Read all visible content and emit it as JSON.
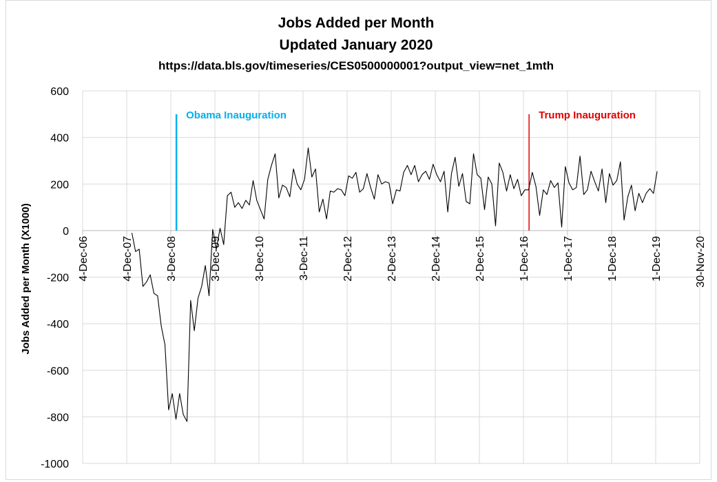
{
  "chart_data": {
    "type": "line",
    "title": "Jobs Added per Month",
    "subtitle": "Updated January 2020",
    "source_line": "https://data.bls.gov/timeseries/CES0500000001?output_view=net_1mth",
    "xlabel": "",
    "ylabel": "Jobs Added per Month (X1000)",
    "ylim": [
      -1000,
      600
    ],
    "y_ticks": [
      600,
      400,
      200,
      0,
      -200,
      -400,
      -600,
      -800,
      -1000
    ],
    "x_ticks": [
      "4-Dec-06",
      "4-Dec-07",
      "3-Dec-08",
      "3-Dec-09",
      "3-Dec-10",
      "3-Dec-11",
      "2-Dec-12",
      "2-Dec-13",
      "2-Dec-14",
      "2-Dec-15",
      "1-Dec-16",
      "1-Dec-17",
      "1-Dec-18",
      "1-Dec-19",
      "30-Nov-20"
    ],
    "grid": "vertical",
    "line_color": "#000000",
    "series": [
      {
        "start": "2008-01",
        "frequency": "monthly",
        "values": [
          -10,
          -90,
          -80,
          -240,
          -220,
          -190,
          -270,
          -280,
          -410,
          -490,
          -770,
          -700,
          -810,
          -700,
          -790,
          -820,
          -300,
          -430,
          -290,
          -240,
          -150,
          -280,
          5,
          -80,
          10,
          -60,
          150,
          165,
          100,
          120,
          95,
          130,
          110,
          215,
          130,
          90,
          50,
          220,
          280,
          330,
          140,
          195,
          185,
          145,
          265,
          200,
          175,
          220,
          355,
          230,
          265,
          80,
          135,
          50,
          170,
          165,
          180,
          175,
          150,
          235,
          225,
          250,
          165,
          180,
          245,
          185,
          135,
          240,
          200,
          210,
          205,
          115,
          175,
          170,
          250,
          280,
          240,
          280,
          210,
          240,
          255,
          220,
          285,
          240,
          210,
          255,
          80,
          245,
          315,
          190,
          245,
          125,
          115,
          330,
          240,
          225,
          90,
          230,
          200,
          20,
          290,
          250,
          170,
          240,
          180,
          220,
          150,
          175,
          175,
          250,
          190,
          65,
          175,
          155,
          215,
          185,
          205,
          15,
          275,
          205,
          175,
          185,
          320,
          155,
          175,
          255,
          210,
          170,
          265,
          120,
          245,
          195,
          215,
          295,
          45,
          145,
          195,
          85,
          160,
          120,
          160,
          180,
          160,
          255
        ]
      }
    ],
    "annotations": [
      {
        "label": "Obama Inauguration",
        "date": "2009-01-20",
        "color": "#00b0f0"
      },
      {
        "label": "Trump Inauguration",
        "date": "2017-01-20",
        "color": "#e00000"
      }
    ]
  }
}
